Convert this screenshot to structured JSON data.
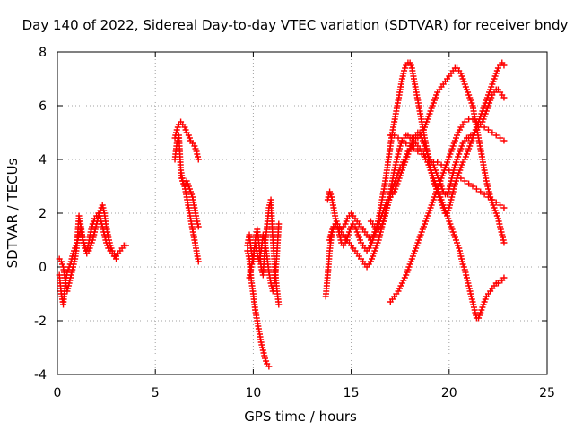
{
  "chart_data": {
    "type": "scatter",
    "title": "Day 140 of 2022, Sidereal Day-to-day VTEC variation (SDTVAR) for receiver bndy",
    "xlabel": "GPS time / hours",
    "ylabel": "SDTVAR / TECUs",
    "xlim": [
      0,
      25
    ],
    "ylim": [
      -4,
      8
    ],
    "xticks": [
      "0",
      "5",
      "10",
      "15",
      "20",
      "25"
    ],
    "yticks": [
      "-4",
      "-2",
      "0",
      "2",
      "4",
      "6",
      "8"
    ],
    "grid": true,
    "marker": "plus",
    "color": "#ff0000",
    "series": [
      {
        "x": [
          0.1,
          0.2,
          0.3,
          0.4,
          0.5,
          0.6,
          0.7,
          0.8,
          0.9,
          1.0,
          1.1,
          1.2,
          1.3,
          1.4,
          1.5,
          1.6,
          1.7,
          1.8,
          1.9,
          2.0,
          2.1,
          2.2,
          2.3,
          2.4,
          2.5,
          2.6,
          2.7,
          2.8,
          2.9,
          3.0,
          3.1,
          3.2,
          3.3,
          3.4,
          3.5
        ],
        "y": [
          -0.3,
          -1.0,
          -1.4,
          -0.6,
          -0.2,
          0.0,
          0.2,
          0.5,
          0.7,
          0.9,
          1.2,
          1.4,
          1.0,
          0.8,
          0.6,
          0.9,
          1.3,
          1.6,
          1.8,
          1.9,
          2.0,
          1.8,
          1.5,
          1.2,
          0.9,
          0.7,
          0.6,
          0.5,
          0.4,
          0.4,
          0.5,
          0.6,
          0.7,
          0.8,
          0.8
        ]
      },
      {
        "x": [
          0.1,
          0.2,
          0.3,
          0.4,
          0.5,
          0.6,
          0.7,
          0.8,
          0.9,
          1.0,
          1.1,
          1.2,
          1.3,
          1.4,
          1.5,
          1.6,
          1.7,
          1.8,
          1.9,
          2.0,
          2.1,
          2.2,
          2.3,
          2.4,
          2.5,
          2.6,
          2.7,
          2.8,
          2.9,
          3.0
        ],
        "y": [
          0.3,
          0.2,
          0.0,
          -0.5,
          -0.9,
          -0.6,
          -0.3,
          0.0,
          0.3,
          0.8,
          1.9,
          1.5,
          1.0,
          0.7,
          0.5,
          0.6,
          0.8,
          1.0,
          1.3,
          1.6,
          1.9,
          2.1,
          2.3,
          2.0,
          1.5,
          1.1,
          0.8,
          0.6,
          0.5,
          0.3
        ]
      },
      {
        "x": [
          6.0,
          6.1,
          6.2,
          6.3,
          6.4,
          6.5,
          6.6,
          6.7,
          6.8,
          6.9,
          7.0,
          7.1,
          7.2
        ],
        "y": [
          4.8,
          5.1,
          5.3,
          5.4,
          5.3,
          5.2,
          5.0,
          4.9,
          4.7,
          4.6,
          4.5,
          4.3,
          4.0
        ]
      },
      {
        "x": [
          6.0,
          6.1,
          6.2,
          6.3,
          6.4,
          6.5,
          6.6,
          6.7,
          6.8,
          6.9,
          7.0,
          7.1,
          7.2
        ],
        "y": [
          4.0,
          4.6,
          4.9,
          3.6,
          3.2,
          3.0,
          3.2,
          3.0,
          2.8,
          2.6,
          2.2,
          1.8,
          1.5
        ]
      },
      {
        "x": [
          6.3,
          6.4,
          6.5,
          6.6,
          6.7,
          6.8,
          6.9,
          7.0,
          7.1,
          7.2
        ],
        "y": [
          3.4,
          3.2,
          3.0,
          2.6,
          2.2,
          1.8,
          1.4,
          1.0,
          0.6,
          0.2
        ]
      },
      {
        "x": [
          9.7,
          9.8,
          9.9,
          10.0,
          10.1,
          10.2,
          10.3,
          10.4,
          10.5,
          10.6,
          10.7,
          10.8
        ],
        "y": [
          0.6,
          0.3,
          -0.5,
          -1.0,
          -1.6,
          -2.0,
          -2.4,
          -2.8,
          -3.1,
          -3.4,
          -3.6,
          -3.7
        ]
      },
      {
        "x": [
          9.7,
          9.8,
          9.9,
          10.0,
          10.1,
          10.2,
          10.3,
          10.4,
          10.5,
          10.6,
          10.7,
          10.8,
          10.9,
          11.0,
          11.1,
          11.2,
          11.3
        ],
        "y": [
          0.8,
          1.2,
          0.6,
          0.2,
          1.0,
          1.4,
          0.8,
          0.0,
          -0.3,
          0.8,
          1.5,
          2.2,
          2.5,
          1.0,
          0.0,
          -0.8,
          -1.4
        ]
      },
      {
        "x": [
          9.8,
          9.9,
          10.0,
          10.1,
          10.2,
          10.3,
          10.4,
          10.5,
          10.6,
          10.7,
          10.8,
          10.9,
          11.0,
          11.1,
          11.2,
          11.3
        ],
        "y": [
          -0.4,
          0.0,
          0.4,
          0.9,
          0.5,
          0.2,
          0.6,
          1.2,
          0.9,
          0.4,
          -0.2,
          -0.6,
          -0.9,
          -0.5,
          0.4,
          1.6
        ]
      },
      {
        "x": [
          13.7,
          13.8,
          13.9,
          14.0,
          14.1,
          14.2,
          14.3,
          14.4,
          14.5,
          14.6,
          14.7,
          14.8,
          14.9,
          15.0,
          15.1,
          15.2,
          15.3,
          15.4,
          15.5,
          15.6,
          15.7,
          15.8,
          15.9,
          16.0,
          16.1,
          16.2,
          16.3,
          16.4,
          16.5,
          16.6,
          16.7,
          16.8,
          16.9,
          17.0,
          17.1,
          17.2,
          17.3,
          17.4,
          17.5,
          17.6,
          17.7,
          17.8,
          17.9,
          18.0,
          18.1,
          18.2,
          18.3,
          18.4,
          18.5,
          18.6,
          18.7,
          18.8,
          18.9,
          19.0,
          19.1,
          19.2,
          19.3,
          19.4,
          19.5,
          19.6,
          19.7,
          19.8,
          19.9,
          20.0,
          20.1,
          20.2,
          20.3,
          20.4,
          20.5,
          20.6,
          20.7,
          20.8,
          20.9,
          21.0,
          21.1,
          21.2,
          21.3,
          21.4,
          21.5,
          21.6,
          21.7,
          21.8,
          21.9,
          22.0,
          22.1,
          22.2,
          22.3,
          22.4,
          22.5,
          22.6,
          22.7,
          22.8
        ],
        "y": [
          -1.1,
          -0.3,
          0.6,
          1.2,
          1.5,
          1.6,
          1.5,
          1.4,
          1.3,
          1.2,
          1.1,
          1.0,
          0.9,
          0.8,
          0.7,
          0.6,
          0.5,
          0.4,
          0.3,
          0.2,
          0.1,
          0.0,
          0.1,
          0.2,
          0.4,
          0.6,
          0.8,
          1.0,
          1.3,
          1.6,
          1.9,
          2.2,
          2.4,
          2.7,
          2.9,
          3.1,
          3.3,
          3.5,
          3.7,
          3.8,
          4.0,
          4.1,
          4.3,
          4.4,
          4.5,
          4.6,
          4.6,
          4.5,
          4.4,
          4.3,
          4.2,
          4.0,
          3.9,
          3.7,
          3.5,
          3.3,
          3.1,
          2.9,
          2.7,
          2.5,
          2.3,
          2.1,
          1.9,
          1.7,
          1.5,
          1.3,
          1.1,
          0.9,
          0.7,
          0.4,
          0.1,
          -0.1,
          -0.4,
          -0.7,
          -1.0,
          -1.3,
          -1.6,
          -1.9,
          -1.9,
          -1.7,
          -1.5,
          -1.3,
          -1.1,
          -1.0,
          -0.9,
          -0.8,
          -0.7,
          -0.6,
          -0.6,
          -0.5,
          -0.5,
          -0.4
        ]
      },
      {
        "x": [
          13.8,
          13.9,
          14.0,
          14.1,
          14.2,
          14.3,
          14.4,
          14.5,
          14.6,
          14.7,
          14.8,
          14.9,
          15.0,
          15.1,
          15.2,
          15.3,
          15.4,
          15.5,
          15.6,
          15.7,
          15.8,
          15.9,
          16.0,
          16.1,
          16.2,
          16.3,
          16.4,
          16.5,
          16.6,
          16.7,
          16.8,
          16.9,
          17.0,
          17.1,
          17.2,
          17.3,
          17.4,
          17.5,
          17.6,
          17.7,
          17.8,
          17.9,
          18.0,
          18.1,
          18.2,
          18.3,
          18.4,
          18.5,
          18.6,
          18.7,
          18.8,
          18.9,
          19.0,
          19.1,
          19.2,
          19.3,
          19.4,
          19.5,
          19.6,
          19.7,
          19.8,
          19.9,
          20.0,
          20.1,
          20.2,
          20.3,
          20.4,
          20.5,
          20.6,
          20.7,
          20.8,
          20.9,
          21.0,
          21.1,
          21.2,
          21.3,
          21.4,
          21.5,
          21.6,
          21.7,
          21.8,
          21.9,
          22.0,
          22.1,
          22.2,
          22.3,
          22.4,
          22.5,
          22.6,
          22.7,
          22.8
        ],
        "y": [
          2.5,
          2.8,
          2.6,
          2.2,
          1.8,
          1.6,
          1.5,
          1.4,
          1.5,
          1.6,
          1.8,
          1.9,
          2.0,
          1.9,
          1.8,
          1.7,
          1.6,
          1.5,
          1.4,
          1.3,
          1.2,
          1.1,
          1.0,
          1.1,
          1.3,
          1.5,
          1.8,
          2.2,
          2.6,
          3.0,
          3.5,
          4.0,
          4.5,
          5.0,
          5.4,
          5.8,
          6.2,
          6.6,
          7.0,
          7.3,
          7.5,
          7.6,
          7.6,
          7.4,
          7.0,
          6.6,
          6.2,
          5.8,
          5.4,
          5.0,
          4.6,
          4.2,
          3.8,
          3.5,
          3.2,
          3.0,
          2.8,
          2.6,
          2.4,
          2.2,
          2.0,
          2.0,
          2.2,
          2.5,
          2.8,
          3.1,
          3.3,
          3.5,
          3.7,
          3.9,
          4.0,
          4.2,
          4.4,
          4.6,
          4.8,
          5.0,
          5.2,
          5.4,
          5.6,
          5.8,
          6.0,
          6.2,
          6.4,
          6.6,
          6.8,
          7.0,
          7.2,
          7.4,
          7.5,
          7.6,
          7.5
        ]
      },
      {
        "x": [
          13.9,
          14.0,
          14.1,
          14.2,
          14.3,
          14.4,
          14.5,
          14.6,
          14.7,
          14.8,
          14.9,
          15.0,
          15.1,
          15.2,
          15.3,
          15.4,
          15.5,
          15.6,
          15.7,
          15.8,
          15.9,
          16.0,
          16.1,
          16.2,
          16.3,
          16.4,
          16.5,
          16.6,
          16.7,
          16.8,
          16.9,
          17.0,
          17.1,
          17.2,
          17.3,
          17.4,
          17.5,
          17.6,
          17.7,
          17.8,
          17.9,
          18.0,
          18.1,
          18.2,
          18.3,
          18.4,
          18.5,
          18.6,
          18.7,
          18.8,
          18.9,
          19.0,
          19.1,
          19.2,
          19.3,
          19.4,
          19.5,
          19.6,
          19.7,
          19.8,
          19.9,
          20.0,
          20.1,
          20.2,
          20.3,
          20.4,
          20.5,
          20.6,
          20.7,
          20.8,
          20.9,
          21.0,
          21.1,
          21.2,
          21.3,
          21.4,
          21.5,
          21.6,
          21.7,
          21.8,
          21.9,
          22.0,
          22.1,
          22.2,
          22.3,
          22.4,
          22.5,
          22.6,
          22.7,
          22.8
        ],
        "y": [
          1.0,
          1.3,
          1.5,
          1.6,
          1.5,
          1.2,
          0.9,
          0.8,
          0.9,
          1.1,
          1.3,
          1.5,
          1.6,
          1.5,
          1.3,
          1.1,
          0.9,
          0.8,
          0.7,
          0.6,
          0.7,
          0.8,
          1.0,
          1.2,
          1.4,
          1.6,
          1.8,
          2.0,
          2.2,
          2.4,
          2.5,
          2.6,
          2.7,
          2.8,
          3.0,
          3.2,
          3.4,
          3.6,
          3.8,
          4.0,
          4.2,
          4.4,
          4.6,
          4.8,
          4.9,
          5.0,
          5.0,
          4.8,
          4.6,
          4.4,
          4.2,
          4.0,
          3.9,
          3.8,
          3.6,
          3.4,
          3.2,
          3.0,
          2.8,
          2.7,
          2.7,
          2.9,
          3.2,
          3.5,
          3.8,
          4.0,
          4.2,
          4.4,
          4.6,
          4.7,
          4.8,
          4.8,
          4.9,
          4.9,
          5.0,
          5.1,
          5.2,
          5.3,
          5.4,
          5.6,
          5.8,
          6.0,
          6.2,
          6.4,
          6.5,
          6.6,
          6.6,
          6.5,
          6.4,
          6.3
        ]
      },
      {
        "x": [
          16.0,
          16.1,
          16.2,
          16.3,
          16.4,
          16.5,
          16.6,
          16.7,
          16.8,
          16.9,
          17.0,
          17.1,
          17.2,
          17.3,
          17.4,
          17.5,
          17.6,
          17.7,
          17.8,
          17.9,
          18.0,
          18.1,
          18.2,
          18.3,
          18.4,
          18.5,
          18.6,
          18.7,
          18.8,
          18.9,
          19.0,
          19.1,
          19.2,
          19.3,
          19.4,
          19.5,
          19.6,
          19.7,
          19.8,
          19.9,
          20.0,
          20.1,
          20.2,
          20.3,
          20.4,
          20.5,
          20.6,
          20.7,
          20.8,
          20.9,
          21.0,
          21.1,
          21.2,
          21.3,
          21.4,
          21.5,
          21.6,
          21.7,
          21.8,
          21.9,
          22.0,
          22.1,
          22.2,
          22.3,
          22.4,
          22.5,
          22.6,
          22.7,
          22.8
        ],
        "y": [
          1.7,
          1.6,
          1.5,
          1.4,
          1.4,
          1.5,
          1.6,
          1.8,
          2.1,
          2.4,
          2.8,
          3.2,
          3.6,
          3.9,
          4.2,
          4.5,
          4.7,
          4.8,
          4.9,
          4.9,
          4.8,
          4.8,
          4.8,
          4.8,
          4.8,
          4.9,
          5.0,
          5.1,
          5.3,
          5.5,
          5.7,
          5.9,
          6.1,
          6.3,
          6.5,
          6.6,
          6.7,
          6.8,
          6.9,
          7.0,
          7.1,
          7.2,
          7.3,
          7.4,
          7.4,
          7.3,
          7.2,
          7.0,
          6.8,
          6.6,
          6.4,
          6.2,
          6.0,
          5.6,
          5.2,
          4.8,
          4.4,
          4.0,
          3.6,
          3.2,
          2.9,
          2.6,
          2.4,
          2.2,
          2.0,
          1.8,
          1.5,
          1.2,
          0.9
        ]
      },
      {
        "x": [
          17.0,
          17.2,
          17.4,
          17.6,
          17.8,
          18.0,
          18.2,
          18.4,
          18.6,
          18.8,
          19.0,
          19.2,
          19.4,
          19.6,
          19.8,
          20.0,
          20.2,
          20.4,
          20.6,
          20.8,
          21.0,
          21.2,
          21.4,
          21.6,
          21.8,
          22.0,
          22.2,
          22.4,
          22.6,
          22.8
        ],
        "y": [
          4.9,
          4.9,
          4.8,
          4.7,
          4.6,
          4.5,
          4.4,
          4.3,
          4.2,
          4.1,
          4.0,
          3.9,
          3.9,
          3.8,
          3.7,
          3.6,
          3.5,
          3.4,
          3.3,
          3.2,
          3.1,
          3.0,
          2.9,
          2.8,
          2.7,
          2.6,
          2.5,
          2.4,
          2.3,
          2.2
        ]
      },
      {
        "x": [
          17.0,
          17.2,
          17.4,
          17.6,
          17.8,
          18.0,
          18.2,
          18.4,
          18.6,
          18.8,
          19.0,
          19.2,
          19.4,
          19.6,
          19.8,
          20.0,
          20.2,
          20.4,
          20.6,
          20.8,
          21.0,
          21.2,
          21.4,
          21.6,
          21.8,
          22.0,
          22.2,
          22.4,
          22.6,
          22.8
        ],
        "y": [
          -1.3,
          -1.1,
          -0.9,
          -0.6,
          -0.3,
          0.1,
          0.5,
          0.9,
          1.3,
          1.7,
          2.1,
          2.5,
          2.9,
          3.3,
          3.7,
          4.1,
          4.5,
          4.9,
          5.2,
          5.4,
          5.5,
          5.5,
          5.4,
          5.3,
          5.2,
          5.1,
          5.0,
          4.9,
          4.8,
          4.7
        ]
      }
    ]
  }
}
